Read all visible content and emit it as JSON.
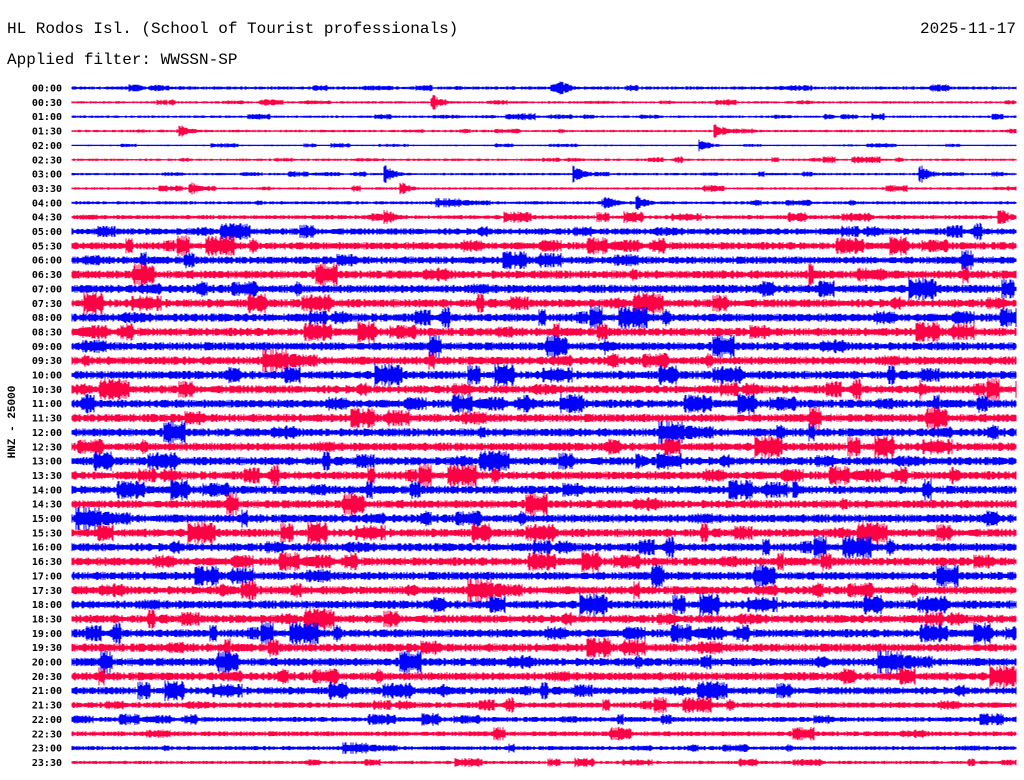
{
  "header": {
    "station": "HL Rodos Isl. (School of Tourist professionals)",
    "date": "2025-11-17",
    "filter": "Applied filter: WWSSN-SP"
  },
  "chart_data": {
    "type": "line",
    "title": "HL Rodos Isl. (School of Tourist professionals)",
    "ylabel": "HNZ - 25000",
    "xlabel": "",
    "colors": [
      "#0000ff",
      "#ff0044"
    ],
    "row_labels": [
      "00:00",
      "00:30",
      "01:00",
      "01:30",
      "02:00",
      "02:30",
      "03:00",
      "03:30",
      "04:00",
      "04:30",
      "05:00",
      "05:30",
      "06:00",
      "06:30",
      "07:00",
      "07:30",
      "08:00",
      "08:30",
      "09:00",
      "09:30",
      "10:00",
      "10:30",
      "11:00",
      "11:30",
      "12:00",
      "12:30",
      "13:00",
      "13:30",
      "14:00",
      "14:30",
      "15:00",
      "15:30",
      "16:00",
      "16:30",
      "17:00",
      "17:30",
      "18:00",
      "18:30",
      "19:00",
      "19:30",
      "20:00",
      "20:30",
      "21:00",
      "21:30",
      "22:00",
      "22:30",
      "23:00",
      "23:30"
    ],
    "noise_level": [
      2,
      1.5,
      1.5,
      1.5,
      1,
      1.5,
      1.5,
      1.5,
      2,
      2.5,
      4,
      4.5,
      4.5,
      5,
      5,
      5,
      5,
      5,
      5,
      5,
      5,
      5,
      5,
      5,
      5,
      5,
      5,
      5,
      5,
      5,
      5,
      5,
      5,
      5,
      5,
      5,
      5,
      5,
      5,
      5,
      5,
      5,
      4.5,
      3.5,
      3,
      3,
      2.5,
      2
    ],
    "events": [
      {
        "row": 0,
        "minute": 15.5,
        "amp": 8
      },
      {
        "row": 1,
        "minute": 11.5,
        "amp": 7
      },
      {
        "row": 3,
        "minute": 3.5,
        "amp": 6
      },
      {
        "row": 3,
        "minute": 20.5,
        "amp": 7
      },
      {
        "row": 4,
        "minute": 20,
        "amp": 6
      },
      {
        "row": 6,
        "minute": 10,
        "amp": 8
      },
      {
        "row": 6,
        "minute": 16,
        "amp": 8
      },
      {
        "row": 6,
        "minute": 27,
        "amp": 8
      },
      {
        "row": 7,
        "minute": 3.8,
        "amp": 6
      },
      {
        "row": 7,
        "minute": 10.5,
        "amp": 6
      },
      {
        "row": 8,
        "minute": 17,
        "amp": 7
      },
      {
        "row": 8,
        "minute": 18,
        "amp": 7
      },
      {
        "row": 9,
        "minute": 10,
        "amp": 8
      },
      {
        "row": 9,
        "minute": 29.5,
        "amp": 9
      },
      {
        "row": 13,
        "minute": 23.5,
        "amp": 10
      },
      {
        "row": 18,
        "minute": 17,
        "amp": 8
      },
      {
        "row": 21,
        "minute": 27,
        "amp": 9
      },
      {
        "row": 22,
        "minute": 14.5,
        "amp": 8
      },
      {
        "row": 24,
        "minute": 22.5,
        "amp": 8
      },
      {
        "row": 26,
        "minute": 18,
        "amp": 8
      },
      {
        "row": 27,
        "minute": 28,
        "amp": 8
      },
      {
        "row": 28,
        "minute": 23,
        "amp": 8
      },
      {
        "row": 34,
        "minute": 18.5,
        "amp": 8
      },
      {
        "row": 35,
        "minute": 4.8,
        "amp": 8
      },
      {
        "row": 42,
        "minute": 11.8,
        "amp": 7
      },
      {
        "row": 40,
        "minute": 18,
        "amp": 7
      }
    ],
    "x_range_minutes": [
      0,
      30
    ]
  }
}
